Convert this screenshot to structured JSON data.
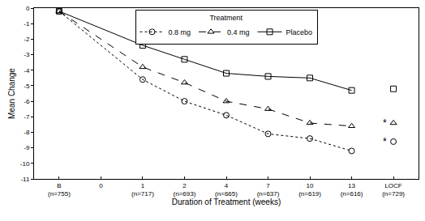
{
  "chart_data": {
    "type": "line",
    "x_title": "Duration of Treatment (weeks)",
    "y_title": "Mean Change",
    "legend_title": "Treatment",
    "legend": "top",
    "grid": false,
    "categories": [
      "B",
      "0",
      "1",
      "2",
      "4",
      "7",
      "10",
      "13",
      "LOCF"
    ],
    "n_labels": [
      "(n=755)",
      null,
      "(n=717)",
      "(n=693)",
      "(n=665)",
      "(n=637)",
      "(n=619)",
      "(n=616)",
      "(n=729)"
    ],
    "ylim": [
      -11,
      0
    ],
    "yticks": [
      0,
      -1,
      -2,
      -3,
      -4,
      -5,
      -6,
      -7,
      -8,
      -9,
      -10,
      -11
    ],
    "series": [
      {
        "name": "0.8 mg",
        "color": "#000000",
        "marker": "circle-open",
        "line_style": "dot",
        "values": [
          -0.2,
          null,
          -4.6,
          -6.0,
          -6.9,
          -8.1,
          -8.4,
          -9.2,
          -8.6
        ],
        "annotation": "*"
      },
      {
        "name": "0.4 mg",
        "color": "#000000",
        "marker": "triangle-up-open",
        "line_style": "dash",
        "values": [
          -0.2,
          null,
          -3.8,
          -4.8,
          -6.0,
          -6.5,
          -7.4,
          -7.6,
          -7.4
        ],
        "annotation": "*"
      },
      {
        "name": "Placebo",
        "color": "#000000",
        "marker": "square-open",
        "line_style": "solid",
        "values": [
          -0.2,
          null,
          -2.4,
          -3.3,
          -4.2,
          -4.4,
          -4.5,
          -5.3,
          -5.2
        ]
      }
    ]
  }
}
